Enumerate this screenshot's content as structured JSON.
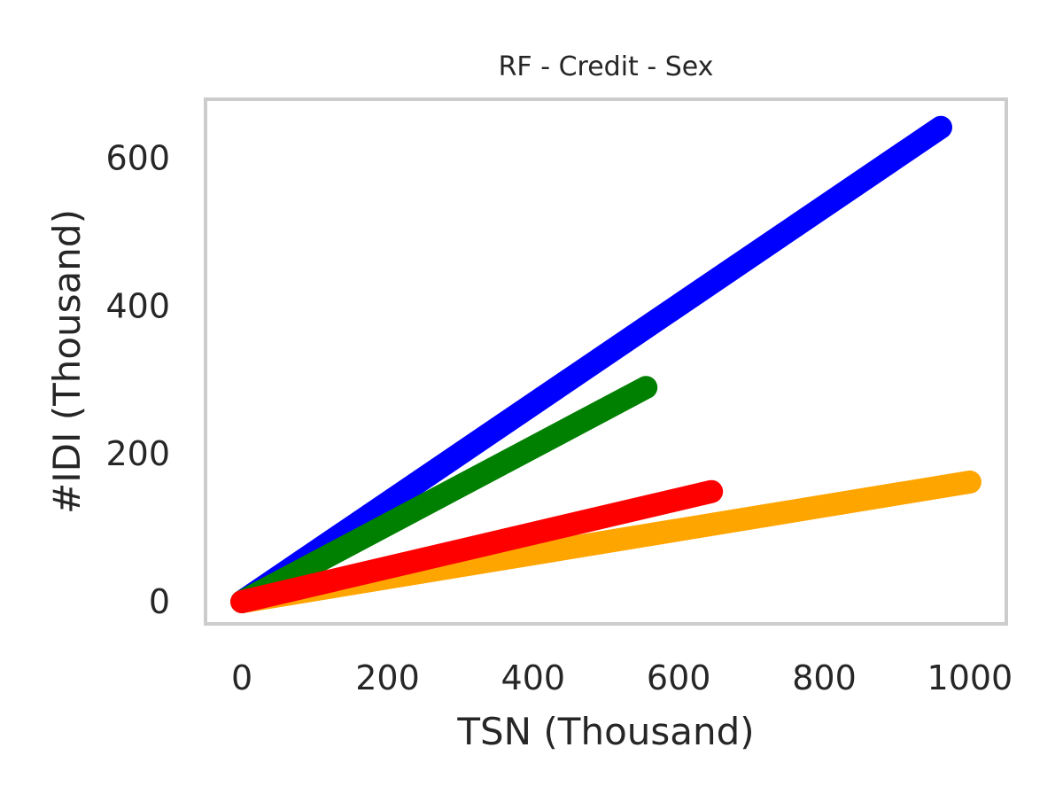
{
  "chart_data": {
    "type": "line",
    "title": "RF - Credit - Sex",
    "xlabel": "TSN (Thousand)",
    "ylabel": "#IDI (Thousand)",
    "xlim": [
      -50,
      1050
    ],
    "ylim": [
      -30,
      680
    ],
    "xticks": [
      0,
      200,
      400,
      600,
      800,
      1000
    ],
    "yticks": [
      0,
      200,
      400,
      600
    ],
    "grid": false,
    "series": [
      {
        "color": "#0000ff",
        "x": [
          0,
          960
        ],
        "y": [
          0,
          642
        ]
      },
      {
        "color": "#ffa500",
        "x": [
          0,
          1000
        ],
        "y": [
          0,
          162
        ]
      },
      {
        "color": "#008000",
        "x": [
          0,
          555
        ],
        "y": [
          0,
          290
        ]
      },
      {
        "color": "#ff0000",
        "x": [
          0,
          645
        ],
        "y": [
          0,
          149
        ]
      }
    ]
  }
}
